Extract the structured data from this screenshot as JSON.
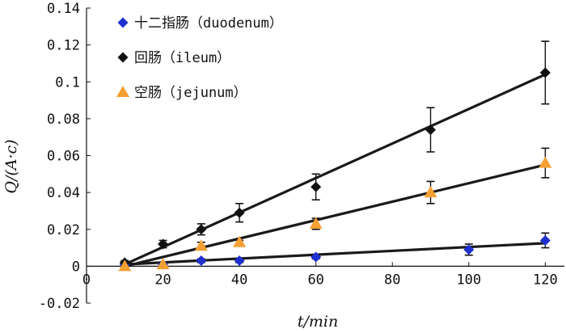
{
  "chart_data": {
    "type": "scatter",
    "xlabel": "t/min",
    "ylabel": "Q/(A·c)",
    "xlim": [
      0,
      125
    ],
    "ylim": [
      -0.02,
      0.14
    ],
    "xticks": [
      0,
      20,
      40,
      60,
      80,
      100,
      120
    ],
    "yticks": [
      -0.02,
      0,
      0.02,
      0.04,
      0.06,
      0.08,
      0.1,
      0.12,
      0.14
    ],
    "ytick_labels": [
      "-0.02",
      "0",
      "0.02",
      "0.04",
      "0.06",
      "0.08",
      "0.1",
      "0.12",
      "0.14"
    ],
    "legend_position": "top-left",
    "series": [
      {
        "name": "十二指肠（duodenum）",
        "marker": "diamond",
        "color": "#1f2fd0",
        "x": [
          10,
          20,
          30,
          40,
          60,
          100,
          120
        ],
        "y": [
          0.001,
          0.001,
          0.003,
          0.003,
          0.005,
          0.009,
          0.014
        ],
        "err": [
          0.001,
          0.001,
          0.001,
          0.001,
          0.001,
          0.003,
          0.004
        ],
        "fit": [
          [
            10,
            0.001
          ],
          [
            120,
            0.0125
          ]
        ]
      },
      {
        "name": "回肠（ileum）",
        "marker": "diamond",
        "color": "#111111",
        "x": [
          10,
          20,
          30,
          40,
          60,
          90,
          120
        ],
        "y": [
          0.002,
          0.012,
          0.02,
          0.029,
          0.043,
          0.074,
          0.105
        ],
        "err": [
          0.001,
          0.002,
          0.003,
          0.005,
          0.007,
          0.012,
          0.017
        ],
        "fit": [
          [
            10,
            0.001
          ],
          [
            120,
            0.104
          ]
        ]
      },
      {
        "name": "空肠（jejunum）",
        "marker": "triangle",
        "color": "#f5a033",
        "x": [
          10,
          20,
          30,
          40,
          60,
          90,
          120
        ],
        "y": [
          0.0,
          0.001,
          0.011,
          0.013,
          0.023,
          0.04,
          0.056
        ],
        "err": [
          0.001,
          0.001,
          0.002,
          0.001,
          0.003,
          0.006,
          0.008
        ],
        "fit": [
          [
            10,
            0.0
          ],
          [
            120,
            0.055
          ]
        ]
      }
    ]
  }
}
